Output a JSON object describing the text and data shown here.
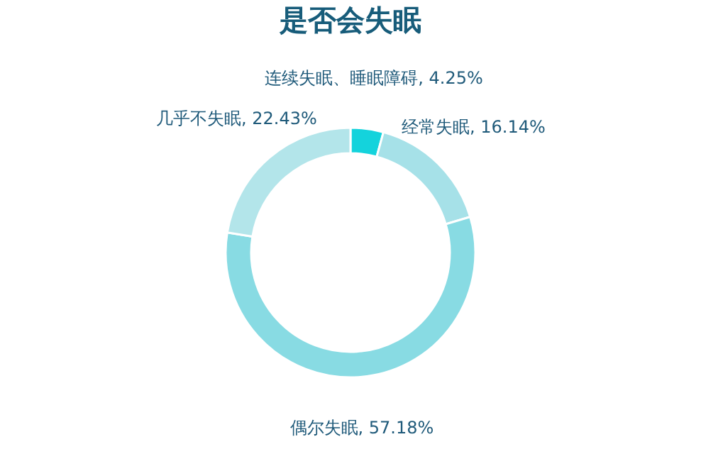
{
  "chart_data": {
    "type": "donut",
    "title": "是否会失眠",
    "categories": [
      "连续失眠、睡眠障碍",
      "经常失眠",
      "偶尔失眠",
      "几乎不失眠"
    ],
    "values": [
      4.25,
      16.14,
      57.18,
      22.43
    ],
    "value_labels": [
      "4.25%",
      "16.14%",
      "57.18%",
      "22.43%"
    ],
    "colors": [
      "#14d3dc",
      "#a6e1e8",
      "#88dbe3",
      "#b3e5ea"
    ],
    "legend": false
  }
}
